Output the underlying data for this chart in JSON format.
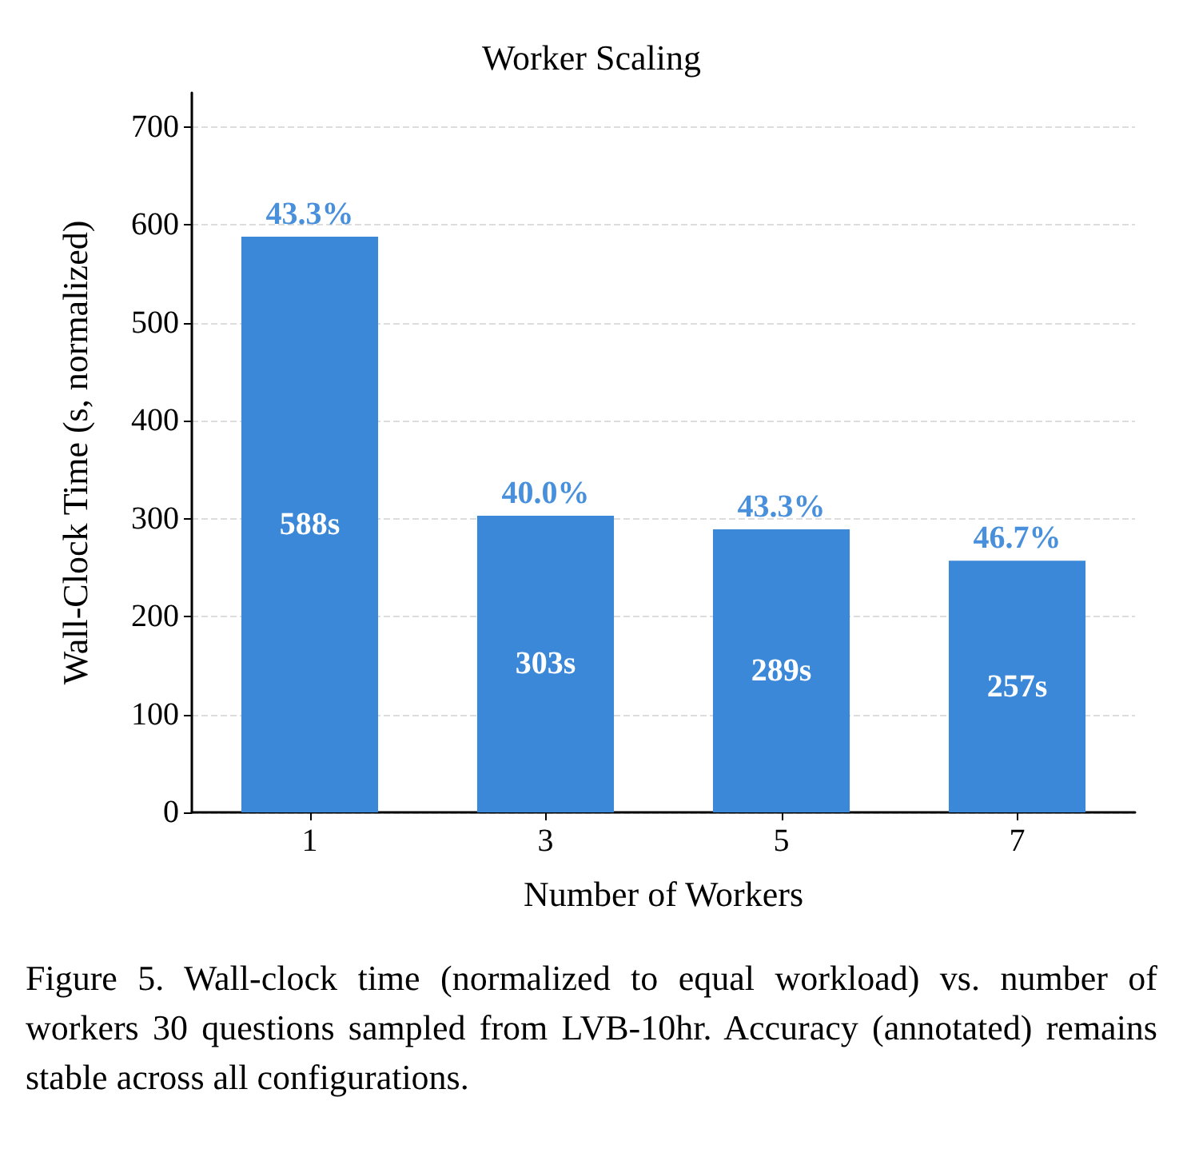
{
  "chart_data": {
    "type": "bar",
    "title": "Worker Scaling",
    "xlabel": "Number of Workers",
    "ylabel": "Wall-Clock Time (s, normalized)",
    "categories": [
      "1",
      "3",
      "5",
      "7"
    ],
    "values": [
      588,
      303,
      289,
      257
    ],
    "value_labels": [
      "588s",
      "303s",
      "289s",
      "257s"
    ],
    "color": "#3b88d9",
    "ylim": [
      0,
      735
    ],
    "yticks": [
      0,
      100,
      200,
      300,
      400,
      500,
      600,
      700
    ],
    "grid": "y",
    "annotations": [
      {
        "text": "43.3%",
        "x": "1",
        "y": 588
      },
      {
        "text": "40.0%",
        "x": "3",
        "y": 303
      },
      {
        "text": "43.3%",
        "x": "5",
        "y": 289
      },
      {
        "text": "46.7%",
        "x": "7",
        "y": 257
      },
      "Figure 5.  Wall-clock time (normalized to equal workload) vs. number of workers 30 questions sampled from LVB-10hr.  Accuracy (annotated) remains stable across all configurations."
    ]
  }
}
